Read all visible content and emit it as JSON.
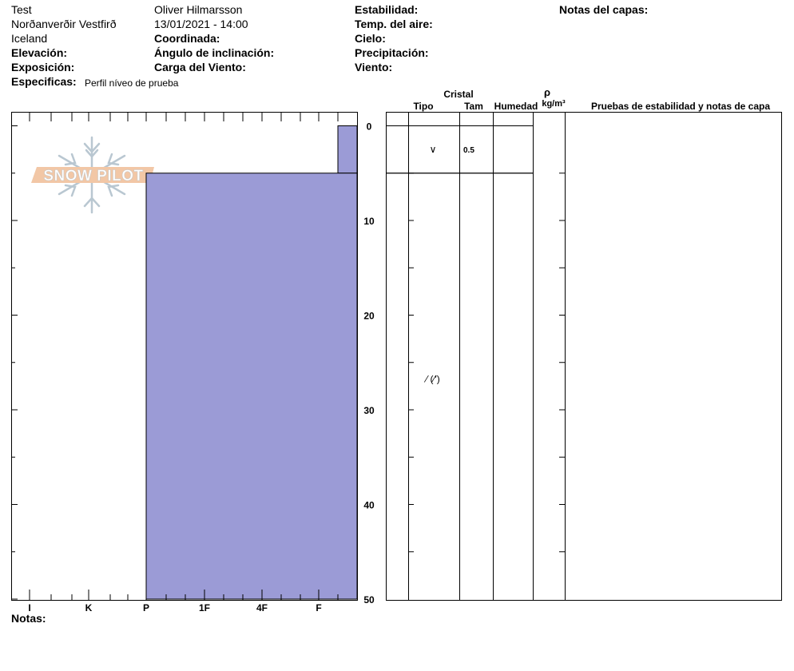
{
  "header": {
    "col1": [
      "Test",
      "Norðanverðir Vestfirð",
      "Iceland"
    ],
    "col1_labels": [
      "Elevación:",
      "Exposición:",
      "Especificas:"
    ],
    "specifics_value": "Perfil níveo de prueba",
    "col2": [
      "Oliver Hilmarsson",
      "13/01/2021 - 14:00"
    ],
    "col2_labels": [
      "Coordinada:",
      "Ángulo de inclinación:",
      "Carga del Viento:"
    ],
    "col3_labels": [
      "Estabilidad:",
      "Temp. del aire:",
      "Cielo:",
      "Precipitación:",
      "Viento:"
    ],
    "col4_labels": [
      "Notas del capas:"
    ]
  },
  "table_headers": {
    "cristal": "Cristal",
    "tipo": "Tipo",
    "tam": "Tam",
    "humedad": "Humedad",
    "rho": "ρ",
    "density_unit": "kg/m³",
    "tests": "Pruebas de estabilidad y notas de capa"
  },
  "logo_text": "SNOW PILOT",
  "notes_label": "Notas:",
  "chart_data": {
    "type": "area",
    "title": "",
    "xlabel": "",
    "ylabel": "",
    "x_tick_labels": [
      "I",
      "K",
      "P",
      "1F",
      "4F",
      "F"
    ],
    "y_tick_labels": [
      "0",
      "10",
      "20",
      "30",
      "40",
      "50"
    ],
    "ylim": [
      0,
      50
    ],
    "fill_color": "#9b9bd6",
    "layers": [
      {
        "top": 0,
        "bottom": 5,
        "hardness": "F-",
        "crystal": "∨",
        "size": "0.5"
      },
      {
        "top": 5,
        "bottom": 50,
        "hardness": "P",
        "crystal": "⁄ (⁄′)",
        "size": ""
      }
    ]
  }
}
